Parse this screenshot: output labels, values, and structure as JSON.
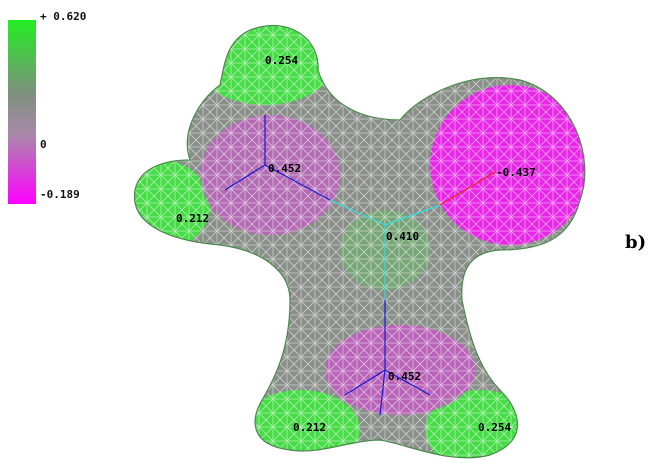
{
  "colors": {
    "positive": "#22ee22",
    "neutral": "#808880",
    "negative": "#ff00ff",
    "bond_blue": "#1a1ad0",
    "bond_cyan": "#33dddd",
    "bond_red": "#ee2222"
  },
  "scale": {
    "max_label": "+ 0.620",
    "zero_label": "0",
    "min_label": "-0.189"
  },
  "panel_label": "b)",
  "charges": [
    {
      "id": "top-left-green",
      "label": "0.254"
    },
    {
      "id": "upper-left-center",
      "label": "0.452"
    },
    {
      "id": "right-lobe",
      "label": "-0.437"
    },
    {
      "id": "far-left-green",
      "label": "0.212"
    },
    {
      "id": "center",
      "label": "0.410"
    },
    {
      "id": "lower-center",
      "label": "0.452"
    },
    {
      "id": "bottom-left-green",
      "label": "0.212"
    },
    {
      "id": "bottom-right-green",
      "label": "0.254"
    }
  ]
}
